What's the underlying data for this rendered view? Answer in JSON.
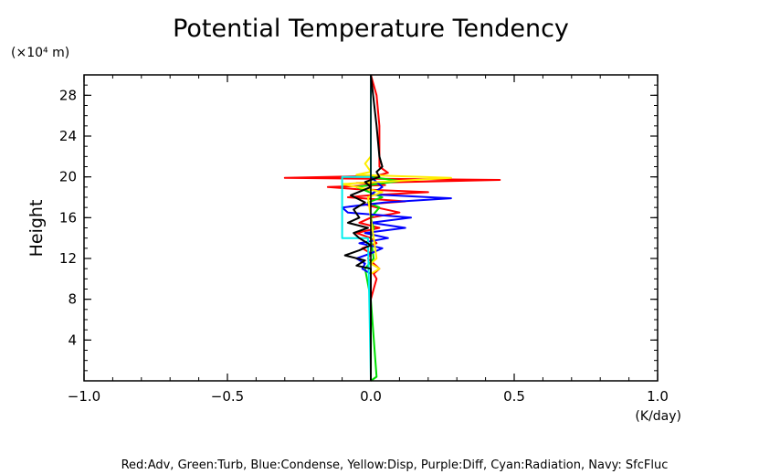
{
  "chart_data": {
    "type": "line",
    "title": "Potential Temperature Tendency",
    "xlabel": "(K/day)",
    "ylabel": "Height",
    "y_unit": "(×10⁴ m)",
    "xlim": [
      -1.0,
      1.0
    ],
    "ylim": [
      0,
      30
    ],
    "x_ticks": [
      -1.0,
      -0.5,
      0.0,
      0.5,
      1.0
    ],
    "x_tick_labels": [
      "−1.0",
      "−0.5",
      "0.0",
      "0.5",
      "1.0"
    ],
    "y_ticks": [
      4,
      8,
      12,
      16,
      20,
      24,
      28
    ],
    "y_tick_labels": [
      "4",
      "8",
      "12",
      "16",
      "20",
      "24",
      "28"
    ],
    "grid": false,
    "legend_text": "Red:Adv, Green:Turb, Blue:Condense, Yellow:Disp, Purple:Diff, Cyan:Radiation, Navy: SfcFluc",
    "series": [
      {
        "name": "Red:Adv",
        "color": "#ff0000",
        "x": [
          0.0,
          0.0,
          0.01,
          0.02,
          0.01,
          0.03,
          0.01,
          -0.01,
          0.0,
          -0.03,
          0.02,
          0.0,
          -0.05,
          0.03,
          -0.04,
          0.0,
          0.1,
          0.02,
          -0.02,
          0.12,
          -0.08,
          0.0,
          0.2,
          -0.05,
          -0.15,
          0.05,
          -0.05,
          0.45,
          -0.3,
          0.02,
          0.06,
          0.03,
          0.03,
          0.03,
          0.02,
          0.0
        ],
        "y": [
          0,
          8,
          9,
          10,
          10.5,
          11,
          11.5,
          12,
          12.5,
          13,
          13.5,
          14,
          14.5,
          15,
          15.5,
          16,
          16.5,
          17,
          17.3,
          17.6,
          18,
          18.2,
          18.5,
          18.8,
          19,
          19.2,
          19.4,
          19.7,
          19.9,
          20.1,
          20.4,
          21,
          22,
          25,
          28,
          30
        ]
      },
      {
        "name": "Green:Turb",
        "color": "#00dd00",
        "x": [
          0.0,
          0.02,
          0.0,
          -0.02,
          0.01,
          0.0,
          0.01,
          0.0,
          0.03,
          -0.01,
          0.04,
          -0.05,
          0.02,
          0.1,
          0.0,
          0.0
        ],
        "y": [
          0,
          0.4,
          8,
          11,
          12,
          14,
          15,
          16,
          17,
          17.5,
          18,
          19,
          19.3,
          19.6,
          20,
          30
        ]
      },
      {
        "name": "Blue:Condense",
        "color": "#0000ff",
        "x": [
          0.0,
          0.0,
          -0.03,
          -0.02,
          -0.05,
          0.0,
          0.04,
          -0.04,
          0.06,
          -0.02,
          0.12,
          0.0,
          0.14,
          -0.08,
          -0.1,
          0.05,
          0.28,
          0.0,
          0.04,
          0.0,
          0.0
        ],
        "y": [
          0,
          10.5,
          11,
          11.5,
          12,
          12.5,
          13,
          13.5,
          14,
          14.5,
          15,
          15.5,
          16,
          16.5,
          17,
          17.5,
          17.9,
          18.3,
          19,
          20,
          30
        ]
      },
      {
        "name": "Yellow:Disp",
        "color": "#ffee00",
        "x": [
          0.0,
          0.0,
          0.03,
          0.0,
          0.02,
          -0.01,
          0.04,
          -0.1,
          0.28,
          -0.05,
          0.0,
          -0.02,
          0.0,
          0.0
        ],
        "y": [
          0,
          10.5,
          11,
          11.5,
          12,
          18,
          18.5,
          19.3,
          19.9,
          20.2,
          20.5,
          21.3,
          22,
          30
        ]
      },
      {
        "name": "Cyan:Radiation",
        "color": "#00eeee",
        "x": [
          0.0,
          0.0,
          -0.01,
          -0.1,
          -0.1,
          0.0,
          0.0
        ],
        "y": [
          0,
          0.3,
          14,
          14,
          20,
          20,
          30
        ]
      },
      {
        "name": "Navy: SfcFluc",
        "color": "#000000",
        "x": [
          0.0,
          0.0,
          0.0,
          -0.05,
          -0.02,
          -0.09,
          -0.04,
          0.0,
          -0.04,
          -0.06,
          -0.01,
          -0.08,
          -0.04,
          -0.06,
          -0.02,
          -0.07,
          0.0,
          -0.02,
          0.03,
          0.02,
          0.04,
          0.03,
          0.02,
          0.0
        ],
        "y": [
          0,
          8,
          11,
          11.3,
          11.8,
          12.3,
          12.8,
          13.3,
          14,
          14.5,
          15,
          15.5,
          16,
          16.8,
          17.5,
          18.2,
          19,
          19.5,
          20,
          20.5,
          21,
          22,
          25,
          30
        ]
      }
    ],
    "zero_line_color": "#000000"
  }
}
